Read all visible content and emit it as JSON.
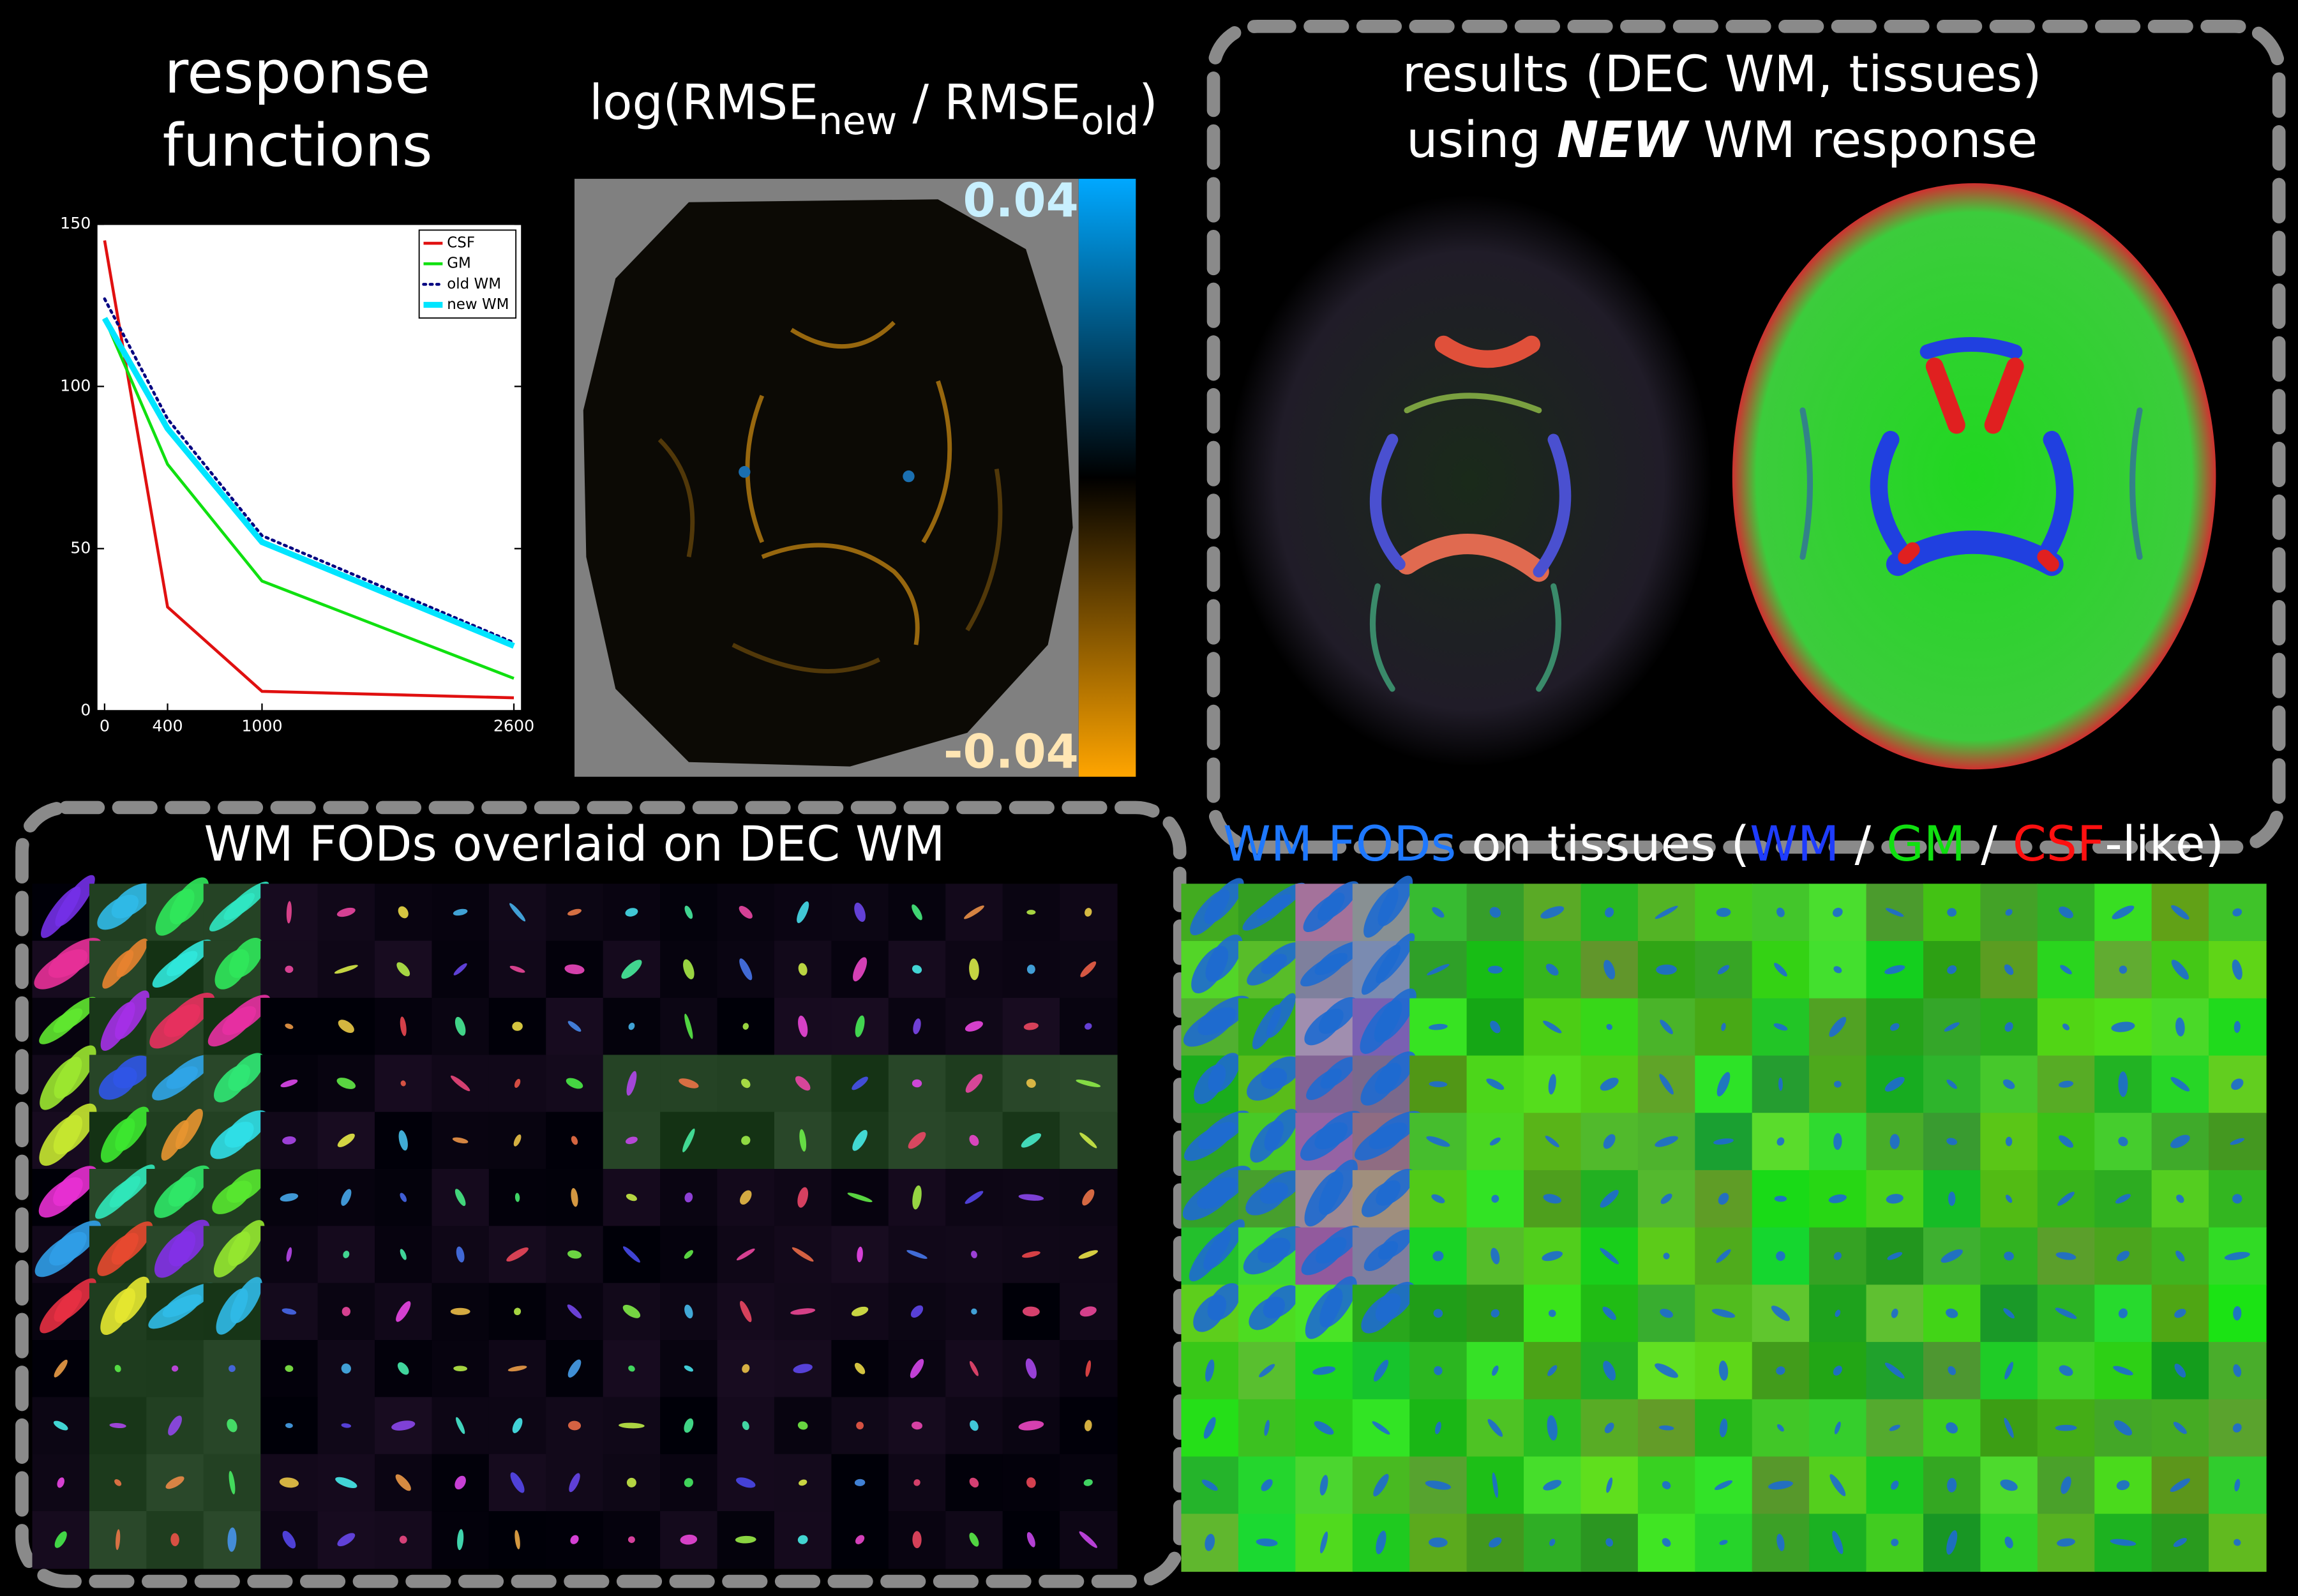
{
  "chart_data": {
    "type": "line",
    "title_lines": [
      "response",
      "functions"
    ],
    "x": [
      0,
      400,
      1000,
      2600
    ],
    "series": [
      {
        "name": "CSF",
        "color": "#e01010",
        "style": "solid",
        "width": 2,
        "values": [
          145,
          32,
          6,
          4
        ]
      },
      {
        "name": "GM",
        "color": "#10e010",
        "style": "solid",
        "width": 2,
        "values": [
          121,
          76,
          40,
          10
        ]
      },
      {
        "name": "old WM",
        "color": "#000080",
        "style": "dotted",
        "width": 2,
        "values": [
          127,
          90,
          54,
          21
        ]
      },
      {
        "name": "new WM",
        "color": "#00e5ff",
        "style": "solid",
        "width": 4,
        "values": [
          121,
          87,
          52,
          20
        ]
      }
    ],
    "xlim": [
      -50,
      2650
    ],
    "ylim": [
      0,
      150
    ],
    "xticks": [
      0,
      400,
      1000,
      2600
    ],
    "yticks": [
      0,
      50,
      100,
      150
    ],
    "legend": "top-right",
    "grid": false
  },
  "rmse_map": {
    "title_parts": [
      "log(RMSE",
      "new",
      " / RMSE",
      "old",
      ")"
    ],
    "colorbar": {
      "lim": [
        -0.04,
        0.04
      ],
      "ticks": [
        0.04,
        -0.04
      ],
      "top_color": "#00a8ff",
      "bottom_color": "#ffa500"
    }
  },
  "results_panel": {
    "title_line1": "results (DEC WM, tissues)",
    "title_line2_parts": [
      "using ",
      "NEW",
      " WM response"
    ]
  },
  "fod_panels": {
    "left_title": "WM FODs overlaid on DEC WM",
    "right_title_parts": [
      {
        "text": "WM FODs",
        "color": "#1e78ff"
      },
      {
        "text": " on tissues (",
        "color": "#ffffff"
      },
      {
        "text": "WM",
        "color": "#1e3cff"
      },
      {
        "text": " / ",
        "color": "#ffffff"
      },
      {
        "text": "GM",
        "color": "#10e010"
      },
      {
        "text": " / ",
        "color": "#ffffff"
      },
      {
        "text": "CSF",
        "color": "#ff1010"
      },
      {
        "text": "-like)",
        "color": "#ffffff"
      }
    ]
  }
}
